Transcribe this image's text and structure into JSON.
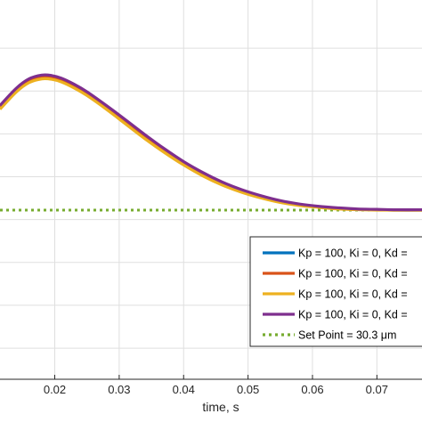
{
  "chart_data": {
    "type": "line",
    "title": "",
    "xlabel": "time, s",
    "ylabel": "",
    "xlim": [
      0.0115,
      0.077
    ],
    "ylim": [
      0,
      1
    ],
    "x_ticks": [
      "0.02",
      "0.03",
      "0.04",
      "0.05",
      "0.06",
      "0.07"
    ],
    "x_tick_values": [
      0.02,
      0.03,
      0.04,
      0.05,
      0.06,
      0.07
    ],
    "y_gridlines": [
      0.082,
      0.195,
      0.308,
      0.421,
      0.534,
      0.647,
      0.76,
      0.873
    ],
    "grid": true,
    "legend_position": "lower-right",
    "series": [
      {
        "name": "Kp = 100, Ki = 0, Kd =",
        "color": "#0072BD",
        "style": "solid",
        "x": [
          0.0115,
          0.014,
          0.016,
          0.018,
          0.0195,
          0.021,
          0.023,
          0.025,
          0.028,
          0.031,
          0.034,
          0.037,
          0.04,
          0.043,
          0.046,
          0.049,
          0.052,
          0.055,
          0.058,
          0.061,
          0.064,
          0.067,
          0.07,
          0.073,
          0.077
        ],
        "y": [
          0.72,
          0.765,
          0.79,
          0.8,
          0.799,
          0.792,
          0.776,
          0.756,
          0.72,
          0.681,
          0.642,
          0.605,
          0.571,
          0.542,
          0.517,
          0.497,
          0.481,
          0.469,
          0.46,
          0.454,
          0.45,
          0.448,
          0.447,
          0.446,
          0.446
        ]
      },
      {
        "name": "Kp = 100, Ki = 0, Kd =",
        "color": "#D95319",
        "style": "solid",
        "x": [
          0.0115,
          0.014,
          0.016,
          0.018,
          0.0195,
          0.021,
          0.023,
          0.025,
          0.028,
          0.031,
          0.034,
          0.037,
          0.04,
          0.043,
          0.046,
          0.049,
          0.052,
          0.055,
          0.058,
          0.061,
          0.064,
          0.067,
          0.07,
          0.073,
          0.077
        ],
        "y": [
          0.718,
          0.763,
          0.788,
          0.798,
          0.797,
          0.79,
          0.774,
          0.754,
          0.718,
          0.679,
          0.64,
          0.603,
          0.569,
          0.54,
          0.516,
          0.496,
          0.48,
          0.468,
          0.459,
          0.454,
          0.45,
          0.448,
          0.447,
          0.446,
          0.446
        ]
      },
      {
        "name": "Kp = 100, Ki = 0, Kd =",
        "color": "#EDB120",
        "style": "solid",
        "x": [
          0.0115,
          0.014,
          0.016,
          0.018,
          0.0195,
          0.021,
          0.023,
          0.025,
          0.028,
          0.031,
          0.034,
          0.037,
          0.04,
          0.043,
          0.046,
          0.049,
          0.052,
          0.055,
          0.058,
          0.061,
          0.064,
          0.067,
          0.07,
          0.073,
          0.077
        ],
        "y": [
          0.712,
          0.757,
          0.782,
          0.792,
          0.791,
          0.784,
          0.768,
          0.748,
          0.712,
          0.673,
          0.634,
          0.598,
          0.565,
          0.536,
          0.512,
          0.493,
          0.478,
          0.466,
          0.458,
          0.453,
          0.449,
          0.447,
          0.446,
          0.446,
          0.446
        ]
      },
      {
        "name": "Kp = 100, Ki = 0, Kd =",
        "color": "#7E2F8E",
        "style": "solid",
        "x": [
          0.0115,
          0.014,
          0.016,
          0.018,
          0.0195,
          0.021,
          0.023,
          0.025,
          0.028,
          0.031,
          0.034,
          0.037,
          0.04,
          0.043,
          0.046,
          0.049,
          0.052,
          0.055,
          0.058,
          0.061,
          0.064,
          0.067,
          0.07,
          0.073,
          0.077
        ],
        "y": [
          0.722,
          0.767,
          0.792,
          0.802,
          0.801,
          0.794,
          0.778,
          0.758,
          0.722,
          0.684,
          0.645,
          0.608,
          0.574,
          0.545,
          0.52,
          0.5,
          0.484,
          0.471,
          0.462,
          0.456,
          0.452,
          0.449,
          0.448,
          0.447,
          0.447
        ]
      },
      {
        "name": "Set Point = 30.3 μm",
        "color": "#77AC30",
        "style": "dotted",
        "x": [
          0.0115,
          0.077
        ],
        "y": [
          0.446,
          0.446
        ]
      }
    ]
  }
}
